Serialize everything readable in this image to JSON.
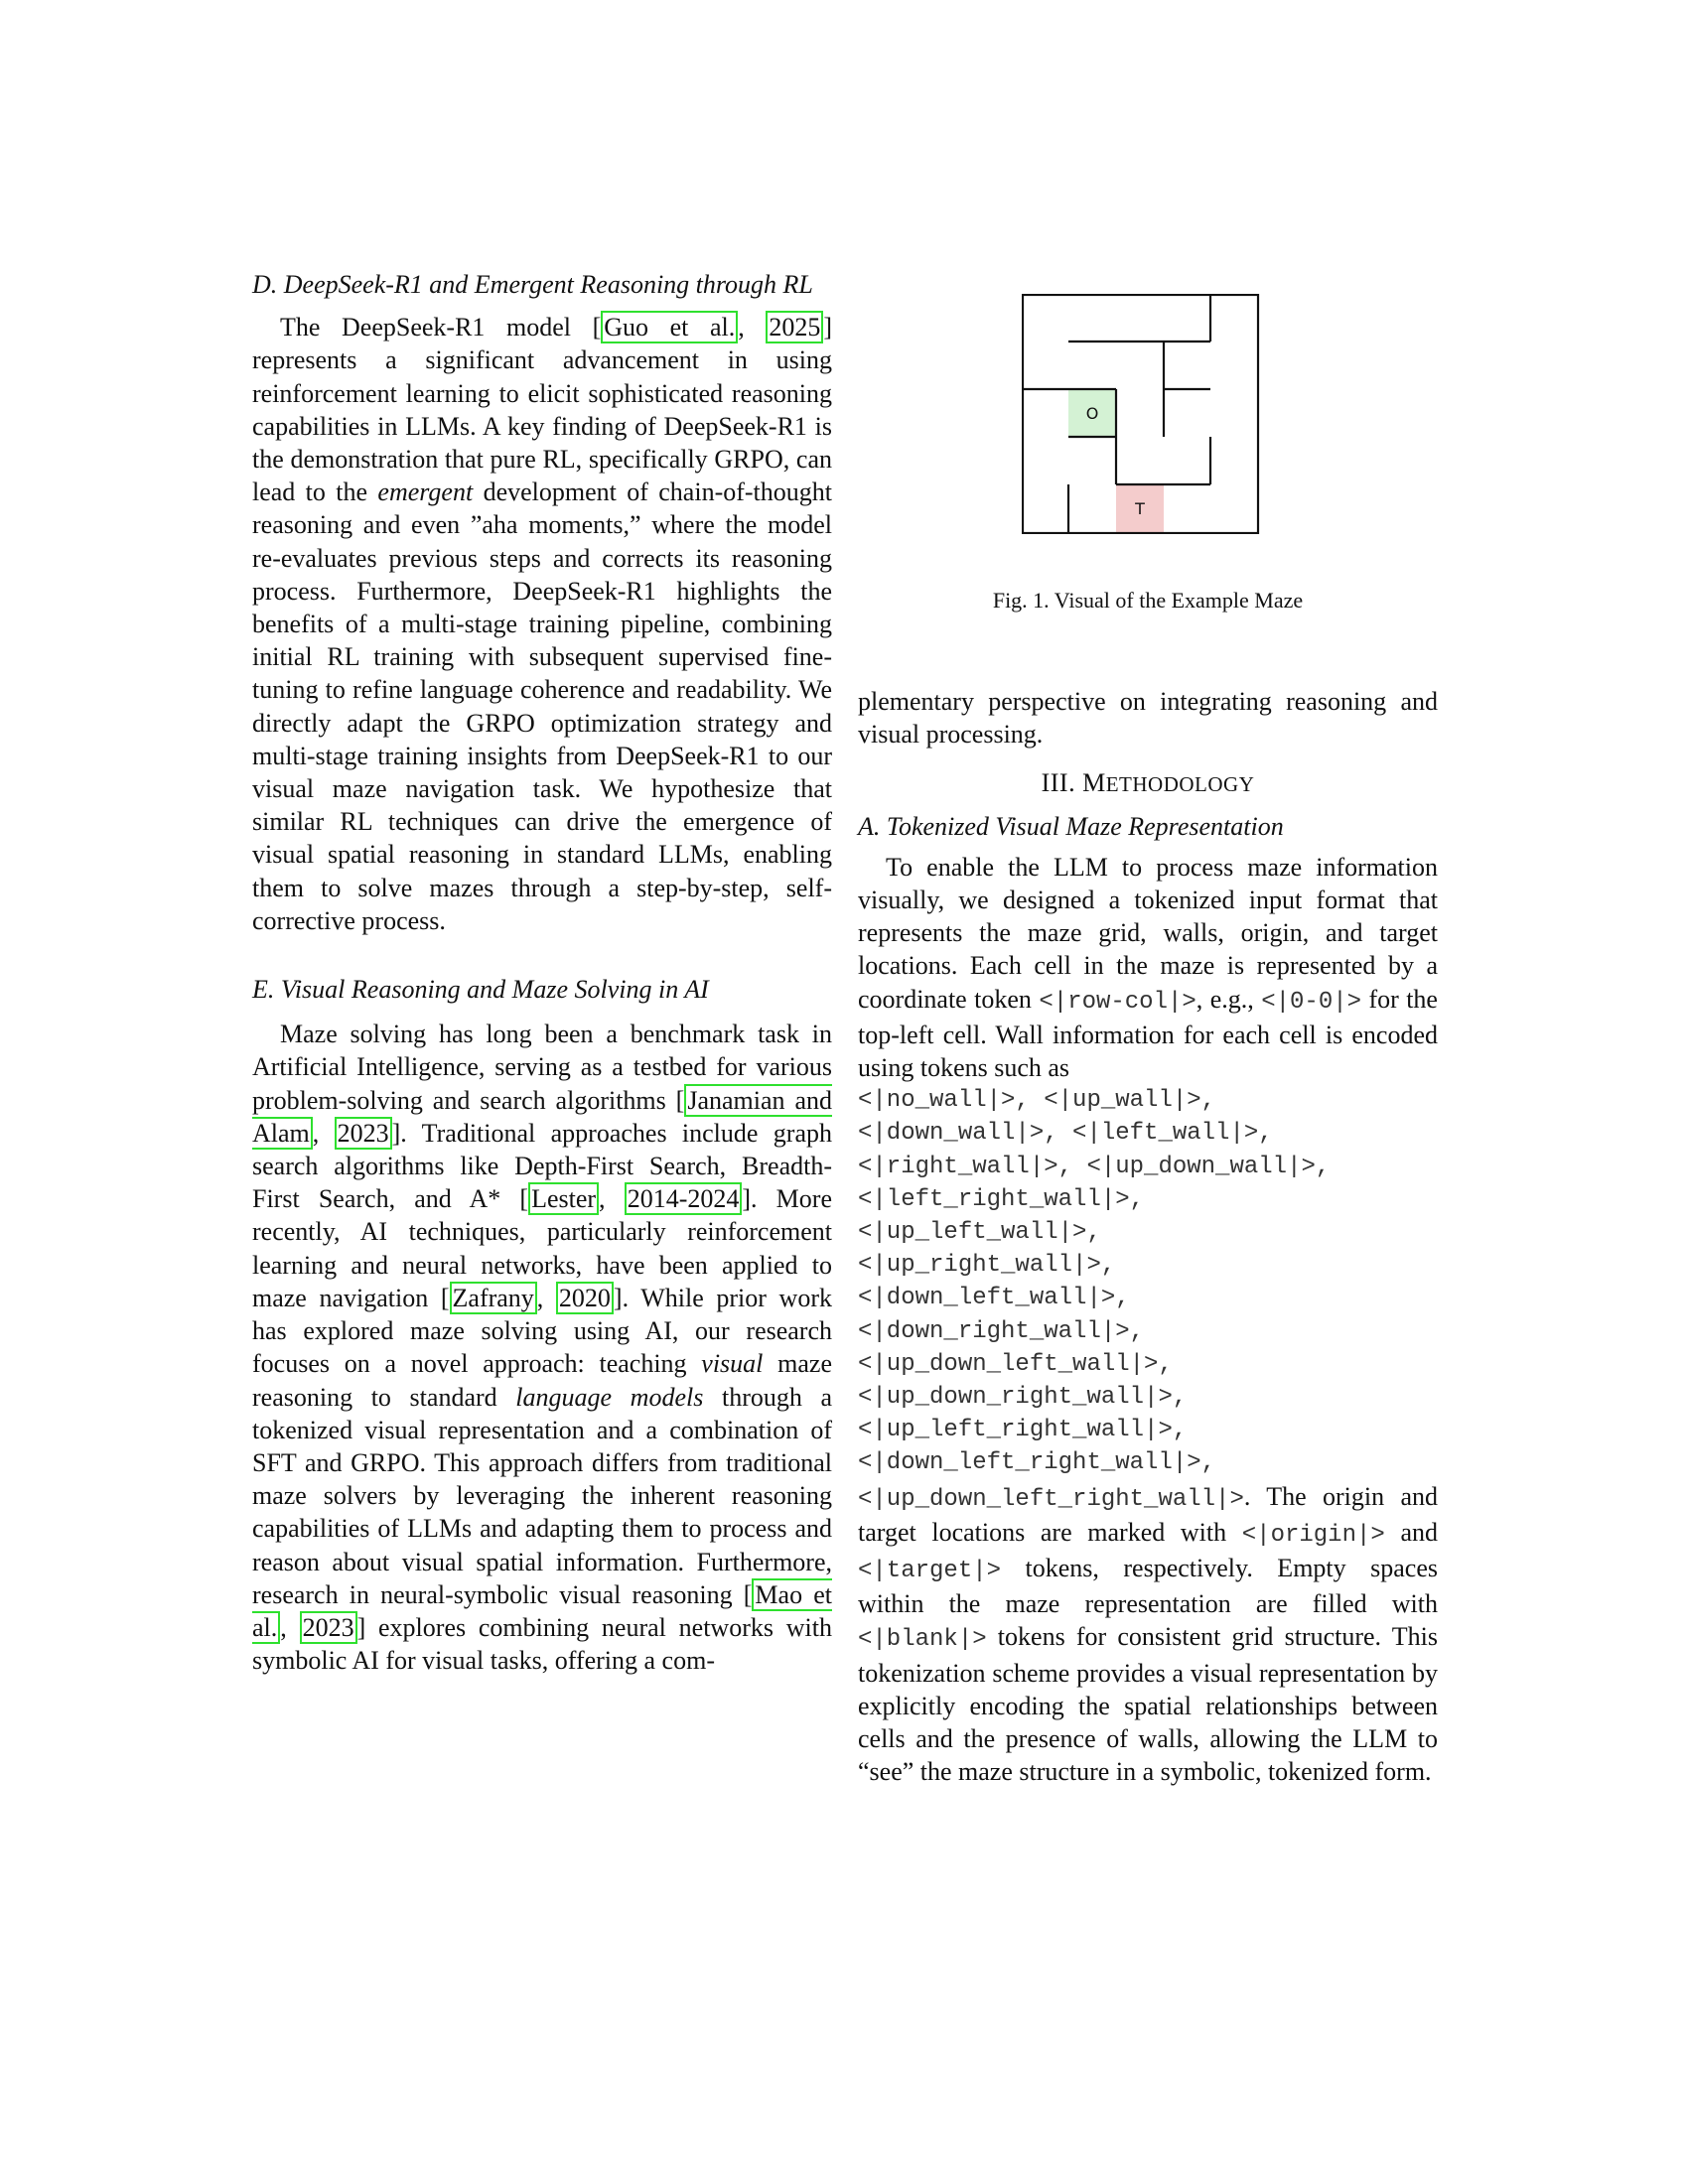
{
  "left": {
    "section_d": {
      "title": "D. DeepSeek-R1 and Emergent Reasoning through RL",
      "p1_a": "The DeepSeek-R1 model [",
      "cite_guo_1": "Guo et al.",
      "cite_sep_1": ", ",
      "cite_guo_2": "2025",
      "p1_b": "] represents a significant advancement in using reinforcement learning to elicit sophisticated reasoning capabilities in LLMs. A key finding of DeepSeek-R1 is the demonstration that pure RL, specifically GRPO, can lead to the ",
      "p1_em": "emergent",
      "p1_c": " development of chain-of-thought reasoning and even ”aha moments,” where the model re-evaluates previous steps and corrects its reasoning process. Furthermore, DeepSeek-R1 highlights the benefits of a multi-stage training pipeline, combining initial RL training with subsequent supervised fine-tuning to refine language coherence and readability. We directly adapt the GRPO optimization strategy and multi-stage training insights from DeepSeek-R1 to our visual maze navigation task. We hypothesize that similar RL techniques can drive the emergence of visual spatial reasoning in standard LLMs, enabling them to solve mazes through a step-by-step, self-corrective process."
    },
    "section_e": {
      "title": "E. Visual Reasoning and Maze Solving in AI",
      "p1_a": "Maze solving has long been a benchmark task in Artificial Intelligence, serving as a testbed for various problem-solving and search algorithms [",
      "cite_jan_1": "Janamian and Alam",
      "cite_jan_sep": ", ",
      "cite_jan_2": "2023",
      "p1_b": "]. Traditional approaches include graph search algorithms like Depth-First Search, Breadth-First Search, and A* [",
      "cite_les_1": "Lester",
      "cite_les_sep": ", ",
      "cite_les_2": "2014-2024",
      "p1_c": "]. More recently, AI techniques, particularly reinforcement learning and neural networks, have been applied to maze navigation [",
      "cite_zaf_1": "Zafrany",
      "cite_zaf_sep": ", ",
      "cite_zaf_2": "2020",
      "p1_d": "]. While prior work has explored maze solving using AI, our research focuses on a novel approach: teaching ",
      "p1_em1": "visual",
      "p1_e": " maze reasoning to standard ",
      "p1_em2": "language models",
      "p1_f": " through a tokenized visual representation and a combination of SFT and GRPO. This approach differs from traditional maze solvers by leveraging the inherent reasoning capabilities of LLMs and adapting them to process and reason about visual spatial information. Furthermore, research in neural-symbolic visual reasoning [",
      "cite_mao_1": "Mao et al.",
      "cite_mao_sep": ", ",
      "cite_mao_2": "2023",
      "p1_g": "] explores combining neural networks with symbolic AI for visual tasks, offering a com-"
    }
  },
  "figure": {
    "origin_label": "O",
    "target_label": "T",
    "caption": "Fig. 1.  Visual of the Example Maze",
    "origin_color": "#d4f2d4",
    "target_color": "#f4cccc"
  },
  "right": {
    "cont": "plementary perspective on integrating reasoning and visual processing.",
    "methodology_num": "III. ",
    "methodology_M": "M",
    "methodology_rest": "ETHODOLOGY",
    "section_a_title": "A. Tokenized Visual Maze Representation",
    "pa_1": "To enable the LLM to process maze information visually, we designed a tokenized input format that represents the maze grid, walls, origin, and target locations. Each cell in the maze is represented by a coordinate token ",
    "tok_rowcol": "<|row-col|>",
    "pa_2": ", e.g., ",
    "tok_00": "<|0-0|>",
    "pa_3": " for the top-left cell. Wall information for each cell is encoded using tokens such as ",
    "tok_list": [
      "<|no_wall|>, <|up_wall|>,",
      "<|down_wall|>, <|left_wall|>,",
      "<|right_wall|>, <|up_down_wall|>,",
      "<|left_right_wall|>,",
      "<|up_left_wall|>,",
      "<|up_right_wall|>,",
      "<|down_left_wall|>,",
      "<|down_right_wall|>,",
      "<|up_down_left_wall|>,",
      "<|up_down_right_wall|>,",
      "<|up_left_right_wall|>,",
      "<|down_left_right_wall|>,"
    ],
    "tok_last": "<|up_down_left_right_wall|>",
    "pa_4": ". The origin and target locations are marked with ",
    "tok_origin": "<|origin|>",
    "pa_5": " and ",
    "tok_target": "<|target|>",
    "pa_6": " tokens, respectively. Empty spaces within the maze representation are filled with ",
    "tok_blank": "<|blank|>",
    "pa_7": " tokens for consistent grid structure. This tokenization scheme provides a visual representation by explicitly encoding the spatial relationships between cells and the presence of walls, allowing the LLM to “see” the maze structure in a symbolic, tokenized form."
  }
}
